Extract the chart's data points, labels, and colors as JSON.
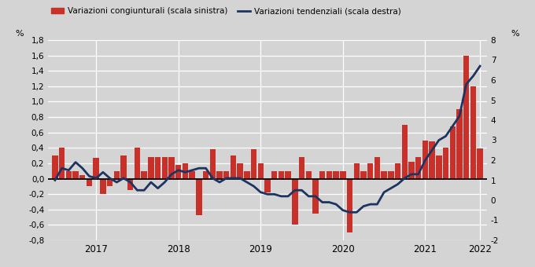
{
  "bar_label": "Variazioni congiunturali (scala sinistra)",
  "line_label": "Variazioni tendenziali (scala destra)",
  "bar_color": "#c8312a",
  "line_color": "#1c3461",
  "bg_color": "#d4d4d4",
  "left_ylim": [
    -0.8,
    1.8
  ],
  "right_ylim": [
    -2,
    8
  ],
  "left_yticks": [
    -0.8,
    -0.6,
    -0.4,
    -0.2,
    0.0,
    0.2,
    0.4,
    0.6,
    0.8,
    1.0,
    1.2,
    1.4,
    1.6,
    1.8
  ],
  "right_yticks": [
    -2,
    -1,
    0,
    1,
    2,
    3,
    4,
    5,
    6,
    7,
    8
  ],
  "ylabel_left": "%",
  "ylabel_right": "%",
  "zero_line_color": "#000000",
  "bar_values": [
    0.3,
    0.4,
    0.1,
    0.1,
    0.05,
    -0.1,
    0.27,
    -0.2,
    -0.1,
    0.1,
    0.3,
    -0.15,
    0.4,
    0.1,
    0.28,
    0.28,
    0.28,
    0.28,
    0.18,
    0.2,
    0.1,
    -0.47,
    0.1,
    0.38,
    0.1,
    0.1,
    0.3,
    0.2,
    0.1,
    0.38,
    0.2,
    -0.18,
    0.1,
    0.1,
    0.1,
    -0.6,
    0.28,
    0.1,
    -0.45,
    0.1,
    0.1,
    0.1,
    0.1,
    -0.7,
    0.2,
    0.1,
    0.2,
    0.28,
    0.1,
    0.1,
    0.2,
    0.7,
    0.22,
    0.28,
    0.5,
    0.48,
    0.3,
    0.4,
    0.68,
    0.9,
    1.6,
    1.2,
    0.39
  ],
  "line_values": [
    1.0,
    1.6,
    1.5,
    1.9,
    1.6,
    1.2,
    1.1,
    1.4,
    1.1,
    0.9,
    1.1,
    0.9,
    0.5,
    0.5,
    0.9,
    0.6,
    0.9,
    1.3,
    1.5,
    1.4,
    1.5,
    1.6,
    1.6,
    1.1,
    0.9,
    1.1,
    1.1,
    1.1,
    0.9,
    0.7,
    0.4,
    0.3,
    0.3,
    0.2,
    0.2,
    0.5,
    0.5,
    0.2,
    0.2,
    -0.1,
    -0.1,
    -0.2,
    -0.5,
    -0.6,
    -0.6,
    -0.3,
    -0.2,
    -0.2,
    0.4,
    0.6,
    0.8,
    1.1,
    1.3,
    1.3,
    2.0,
    2.5,
    3.0,
    3.2,
    3.7,
    4.2,
    5.8,
    6.2,
    6.7
  ],
  "x_tick_positions": [
    6,
    18,
    30,
    42,
    54,
    62
  ],
  "x_tick_labels": [
    "2017",
    "2018",
    "2019",
    "2020",
    "2021",
    "2022"
  ],
  "n_months": 63
}
